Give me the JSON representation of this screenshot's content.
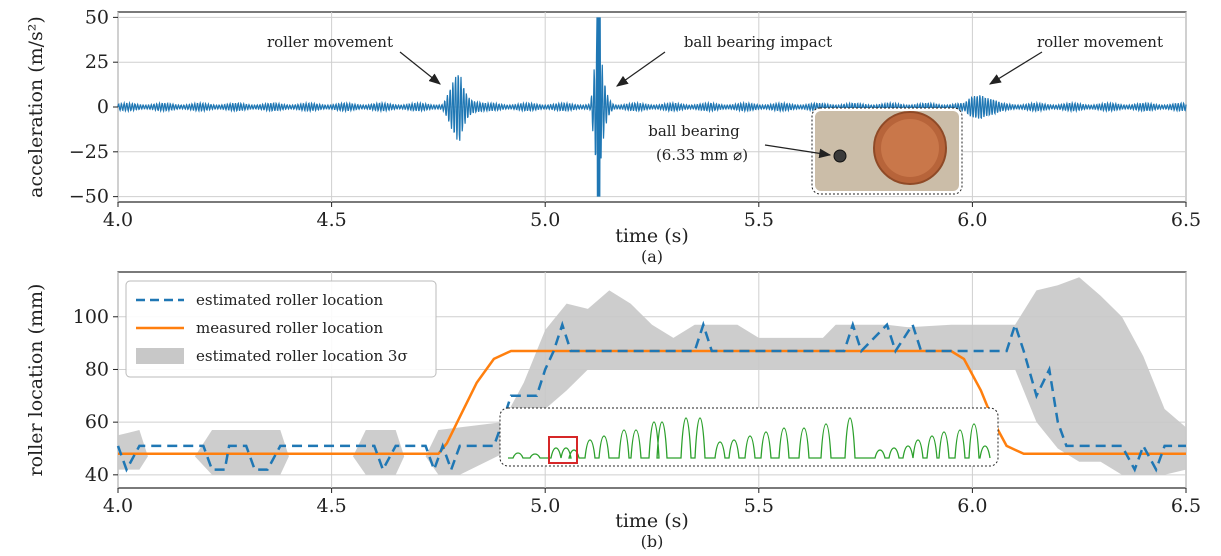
{
  "chart_data": [
    {
      "type": "line",
      "panel": "(a)",
      "xlabel": "time (s)",
      "ylabel": "acceleration (m/s²)",
      "xlim": [
        4.0,
        6.5
      ],
      "ylim": [
        -53,
        53
      ],
      "x_ticks": [
        "4.0",
        "4.5",
        "5.0",
        "5.5",
        "6.0",
        "6.5"
      ],
      "y_ticks": [
        "50",
        "25",
        "0",
        "−25",
        "−50"
      ],
      "grid": true,
      "series": [
        {
          "color": "#1f77b4",
          "description_points": [
            {
              "x": 4.0,
              "y_envelope": 2
            },
            {
              "x": 4.78,
              "y_envelope": 22
            },
            {
              "x": 4.8,
              "y_envelope": 18
            },
            {
              "x": 5.12,
              "y_envelope": 50
            },
            {
              "x": 5.13,
              "y_envelope": -50
            },
            {
              "x": 6.02,
              "y_envelope": 14
            },
            {
              "x": 6.5,
              "y_envelope": 2
            }
          ]
        }
      ],
      "annotations": [
        {
          "text": "roller movement",
          "x": 4.78,
          "y": 12
        },
        {
          "text": "ball bearing impact",
          "x": 5.12,
          "y": 12
        },
        {
          "text": "roller movement",
          "x": 6.02,
          "y": 12
        },
        {
          "text": "ball bearing",
          "subtext": "(6.33 mm ⌀)"
        }
      ]
    },
    {
      "type": "line",
      "panel": "(b)",
      "xlabel": "time (s)",
      "ylabel": "roller location (mm)",
      "xlim": [
        4.0,
        6.5
      ],
      "ylim": [
        35,
        117
      ],
      "x_ticks": [
        "4.0",
        "4.5",
        "5.0",
        "5.5",
        "6.0",
        "6.5"
      ],
      "y_ticks": [
        "100",
        "80",
        "60",
        "40"
      ],
      "grid": true,
      "legend_position": "upper-left",
      "series": [
        {
          "name": "estimated roller location",
          "color": "#1f77b4",
          "style": "dashed",
          "points": [
            [
              4.0,
              51
            ],
            [
              4.02,
              42
            ],
            [
              4.05,
              51
            ],
            [
              4.12,
              51
            ],
            [
              4.15,
              51
            ],
            [
              4.2,
              51
            ],
            [
              4.22,
              42
            ],
            [
              4.25,
              42
            ],
            [
              4.26,
              51
            ],
            [
              4.3,
              51
            ],
            [
              4.32,
              42
            ],
            [
              4.35,
              42
            ],
            [
              4.38,
              51
            ],
            [
              4.55,
              51
            ],
            [
              4.6,
              51
            ],
            [
              4.62,
              42
            ],
            [
              4.65,
              51
            ],
            [
              4.72,
              51
            ],
            [
              4.74,
              42
            ],
            [
              4.76,
              51
            ],
            [
              4.78,
              42
            ],
            [
              4.8,
              51
            ],
            [
              4.88,
              51
            ],
            [
              4.9,
              60
            ],
            [
              4.92,
              70
            ],
            [
              4.98,
              70
            ],
            [
              5.0,
              80
            ],
            [
              5.02,
              87
            ],
            [
              5.04,
              97
            ],
            [
              5.06,
              87
            ],
            [
              5.35,
              87
            ],
            [
              5.37,
              97
            ],
            [
              5.39,
              87
            ],
            [
              5.7,
              87
            ],
            [
              5.72,
              97
            ],
            [
              5.74,
              87
            ],
            [
              5.8,
              97
            ],
            [
              5.82,
              87
            ],
            [
              5.86,
              97
            ],
            [
              5.88,
              87
            ],
            [
              6.05,
              87
            ],
            [
              6.08,
              87
            ],
            [
              6.1,
              97
            ],
            [
              6.12,
              87
            ],
            [
              6.15,
              70
            ],
            [
              6.18,
              80
            ],
            [
              6.2,
              60
            ],
            [
              6.22,
              51
            ],
            [
              6.3,
              51
            ],
            [
              6.35,
              51
            ],
            [
              6.38,
              42
            ],
            [
              6.4,
              51
            ],
            [
              6.43,
              42
            ],
            [
              6.45,
              51
            ],
            [
              6.5,
              51
            ]
          ]
        },
        {
          "name": "measured roller location",
          "color": "#ff7f0e",
          "style": "solid",
          "points": [
            [
              4.0,
              48
            ],
            [
              4.75,
              48
            ],
            [
              4.77,
              52
            ],
            [
              4.8,
              62
            ],
            [
              4.84,
              75
            ],
            [
              4.88,
              84
            ],
            [
              4.92,
              87
            ],
            [
              5.95,
              87
            ],
            [
              5.98,
              84
            ],
            [
              6.02,
              72
            ],
            [
              6.05,
              60
            ],
            [
              6.08,
              51
            ],
            [
              6.12,
              48
            ],
            [
              6.5,
              48
            ]
          ]
        },
        {
          "name": "estimated roller location 3σ",
          "color": "#c8c8c8",
          "style": "band",
          "upper": [
            [
              4.0,
              55
            ],
            [
              4.05,
              57
            ],
            [
              4.07,
              47
            ],
            [
              4.18,
              47
            ],
            [
              4.22,
              57
            ],
            [
              4.38,
              57
            ],
            [
              4.4,
              47
            ],
            [
              4.55,
              47
            ],
            [
              4.58,
              57
            ],
            [
              4.65,
              57
            ],
            [
              4.67,
              47
            ],
            [
              4.72,
              47
            ],
            [
              4.75,
              57
            ],
            [
              4.9,
              60
            ],
            [
              4.95,
              75
            ],
            [
              5.0,
              95
            ],
            [
              5.05,
              105
            ],
            [
              5.1,
              103
            ],
            [
              5.15,
              110
            ],
            [
              5.2,
              105
            ],
            [
              5.25,
              97
            ],
            [
              5.3,
              92
            ],
            [
              5.35,
              97
            ],
            [
              5.45,
              97
            ],
            [
              5.5,
              92
            ],
            [
              5.65,
              92
            ],
            [
              5.68,
              97
            ],
            [
              5.8,
              97
            ],
            [
              5.85,
              96
            ],
            [
              5.95,
              97
            ],
            [
              6.0,
              97
            ],
            [
              6.05,
              97
            ],
            [
              6.1,
              97
            ],
            [
              6.15,
              110
            ],
            [
              6.2,
              112
            ],
            [
              6.25,
              115
            ],
            [
              6.3,
              108
            ],
            [
              6.35,
              100
            ],
            [
              6.4,
              85
            ],
            [
              6.45,
              65
            ],
            [
              6.5,
              58
            ]
          ],
          "lower": [
            [
              4.0,
              42
            ],
            [
              4.05,
              42
            ],
            [
              4.07,
              47
            ],
            [
              4.18,
              47
            ],
            [
              4.22,
              40
            ],
            [
              4.38,
              40
            ],
            [
              4.4,
              47
            ],
            [
              4.55,
              47
            ],
            [
              4.58,
              40
            ],
            [
              4.65,
              40
            ],
            [
              4.67,
              47
            ],
            [
              4.72,
              47
            ],
            [
              4.75,
              40
            ],
            [
              4.8,
              40
            ],
            [
              4.9,
              48
            ],
            [
              4.95,
              48
            ],
            [
              5.0,
              65
            ],
            [
              5.05,
              72
            ],
            [
              5.1,
              80
            ],
            [
              5.15,
              80
            ],
            [
              5.25,
              80
            ],
            [
              5.35,
              80
            ],
            [
              5.5,
              80
            ],
            [
              5.7,
              80
            ],
            [
              5.8,
              80
            ],
            [
              5.95,
              80
            ],
            [
              6.05,
              80
            ],
            [
              6.1,
              80
            ],
            [
              6.15,
              60
            ],
            [
              6.2,
              50
            ],
            [
              6.25,
              45
            ],
            [
              6.3,
              45
            ],
            [
              6.35,
              40
            ],
            [
              6.4,
              40
            ],
            [
              6.45,
              40
            ],
            [
              6.5,
              42
            ]
          ]
        }
      ],
      "inset": {
        "color": "#2ca02c",
        "highlight_color": "#d62728"
      }
    }
  ],
  "captions": {
    "a": "(a)",
    "b": "(b)"
  }
}
